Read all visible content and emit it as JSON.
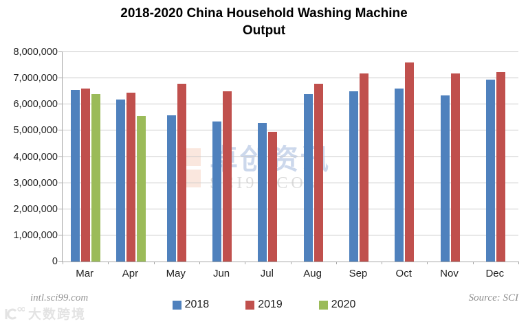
{
  "title": {
    "line1": "2018-2020 China Household Washing Machine",
    "line2": "Output"
  },
  "footer": {
    "site": "intl.sci99.com",
    "source": "Source: SCI"
  },
  "watermarks": {
    "center_cn": "卓创资讯",
    "center_en": "SCI99.COM",
    "corner": "大数跨境",
    "pink": "#fae7de",
    "blue_text": "#ccd8ec",
    "gray_text": "#dcdcdc"
  },
  "chart_data": {
    "type": "bar",
    "title": "2018-2020 China Household Washing Machine Output",
    "categories": [
      "Mar",
      "Apr",
      "May",
      "Jun",
      "Jul",
      "Aug",
      "Sep",
      "Oct",
      "Nov",
      "Dec"
    ],
    "series": [
      {
        "name": "2018",
        "color": "#4F81BD",
        "values": [
          6550000,
          6200000,
          5600000,
          5350000,
          5300000,
          6400000,
          6500000,
          6600000,
          6350000,
          6950000
        ]
      },
      {
        "name": "2019",
        "color": "#C0504D",
        "values": [
          6600000,
          6450000,
          6800000,
          6500000,
          4950000,
          6800000,
          7200000,
          7600000,
          7200000,
          7250000
        ]
      },
      {
        "name": "2020",
        "color": "#9BBB59",
        "values": [
          6400000,
          5550000,
          null,
          null,
          null,
          null,
          null,
          null,
          null,
          null
        ]
      }
    ],
    "xlabel": "",
    "ylabel": "",
    "ylim": [
      0,
      8000000
    ],
    "ytick_step": 1000000,
    "ytick_labels": [
      "0",
      "1,000,000",
      "2,000,000",
      "3,000,000",
      "4,000,000",
      "5,000,000",
      "6,000,000",
      "7,000,000",
      "8,000,000"
    ],
    "grid": true,
    "legend_position": "bottom"
  }
}
